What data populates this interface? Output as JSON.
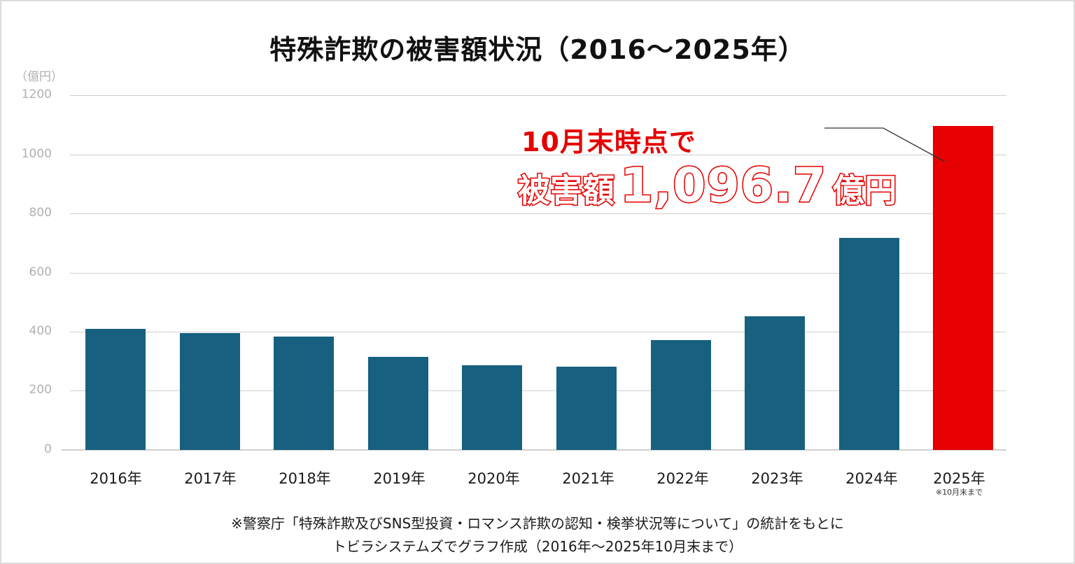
{
  "chart_data": {
    "type": "bar",
    "title": "特殊詐欺の被害額状況（2016〜2025年）",
    "xlabel": "",
    "ylabel": "（億円）",
    "ylim": [
      0,
      1200
    ],
    "yticks": [
      0,
      200,
      400,
      600,
      800,
      1000,
      1200
    ],
    "grid": true,
    "categories": [
      "2016年",
      "2017年",
      "2018年",
      "2019年",
      "2020年",
      "2021年",
      "2022年",
      "2023年",
      "2024年",
      "2025年"
    ],
    "values": [
      409,
      396,
      384,
      316,
      287,
      283,
      372,
      453,
      719,
      1096.7
    ],
    "bar_colors": [
      "#17607f",
      "#17607f",
      "#17607f",
      "#17607f",
      "#17607f",
      "#17607f",
      "#17607f",
      "#17607f",
      "#17607f",
      "#e60000"
    ],
    "category_notes": {
      "2025年": "※10月末まで"
    },
    "annotations": [
      {
        "text": "10月末時点で",
        "target": "2025年"
      },
      {
        "text": "被害額 1,096.7 億円",
        "target": "2025年"
      }
    ]
  },
  "header": {
    "title": "特殊詐欺の被害額状況（2016〜2025年）",
    "unit": "（億円）"
  },
  "yaxis": {
    "ticks": [
      "1200",
      "1000",
      "800",
      "600",
      "400",
      "200",
      "0"
    ]
  },
  "xaxis": {
    "labels": [
      "2016年",
      "2017年",
      "2018年",
      "2019年",
      "2020年",
      "2021年",
      "2022年",
      "2023年",
      "2024年",
      "2025年"
    ],
    "note_2025": "※10月末まで"
  },
  "callout": {
    "line1": "10月末時点で",
    "prefix": "被害額",
    "amount": "1,096.7",
    "suffix": "億円"
  },
  "colors": {
    "bar": "#17607f",
    "highlight": "#e60000",
    "grid": "#cfcfcf",
    "tick_text": "#b0b0b0"
  },
  "footer": {
    "line1": "※警察庁「特殊詐欺及びSNS型投資・ロマンス詐欺の認知・検挙状況等について」の統計をもとに",
    "line2": "トビラシステムズでグラフ作成（2016年〜2025年10月末まで）"
  }
}
